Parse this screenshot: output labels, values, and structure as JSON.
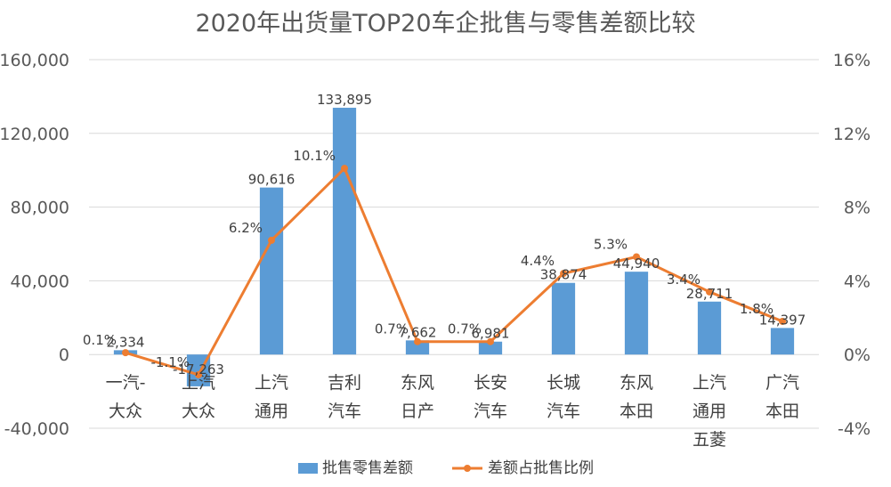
{
  "chart_data": {
    "type": "bar",
    "title": "2020年出货量TOP20车企批售与零售差额比较",
    "categories": [
      [
        "一汽-",
        "大众"
      ],
      [
        "上汽",
        "大众"
      ],
      [
        "上汽",
        "通用"
      ],
      [
        "吉利",
        "汽车"
      ],
      [
        "东风",
        "日产"
      ],
      [
        "长安",
        "汽车"
      ],
      [
        "长城",
        "汽车"
      ],
      [
        "东风",
        "本田"
      ],
      [
        "上汽",
        "通用",
        "五菱"
      ],
      [
        "广汽",
        "本田"
      ]
    ],
    "series": [
      {
        "name": "批售零售差额",
        "type": "bar",
        "axis": "left",
        "color": "#5B9BD5",
        "values": [
          2334,
          -17263,
          90616,
          133895,
          7662,
          6981,
          38874,
          44940,
          28711,
          14397
        ],
        "labels": [
          "2,334",
          "-17,263",
          "90,616",
          "133,895",
          "7,662",
          "6,981",
          "38,874",
          "44,940",
          "28,711",
          "14,397"
        ]
      },
      {
        "name": "差额占批售比例",
        "type": "line",
        "axis": "right",
        "color": "#ED7D31",
        "values": [
          0.1,
          -1.1,
          6.2,
          10.1,
          0.7,
          0.7,
          4.4,
          5.3,
          3.4,
          1.8
        ],
        "labels": [
          "0.1%",
          "-1.1%",
          "6.2%",
          "10.1%",
          "0.7%",
          "0.7%",
          "4.4%",
          "5.3%",
          "3.4%",
          "1.8%"
        ]
      }
    ],
    "y_left": {
      "ylim": [
        -40000,
        160000
      ],
      "ticks": [
        -40000,
        0,
        40000,
        80000,
        120000,
        160000
      ],
      "tick_labels": [
        "-40,000",
        "0",
        "40,000",
        "80,000",
        "120,000",
        "160,000"
      ]
    },
    "y_right": {
      "ylim": [
        -4,
        16
      ],
      "ticks": [
        -4,
        0,
        4,
        8,
        12,
        16
      ],
      "tick_labels": [
        "-4%",
        "0%",
        "4%",
        "8%",
        "12%",
        "16%"
      ]
    },
    "grid": true,
    "legend": "bottom"
  }
}
